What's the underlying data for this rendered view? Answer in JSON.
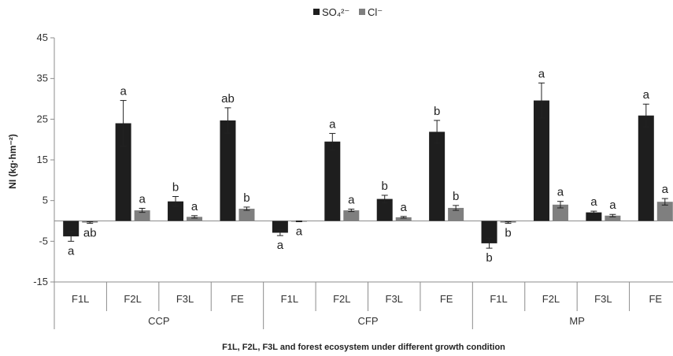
{
  "chart_data": {
    "type": "bar",
    "xlabel": "F1L, F2L, F3L and forest ecosystem under different growth condition",
    "ylabel": "NI (kg·hm⁻²)",
    "ylim": [
      -15,
      45
    ],
    "yticks": [
      -15,
      -5,
      5,
      15,
      25,
      35,
      45
    ],
    "grid": false,
    "legend_position": "top-center",
    "groups": [
      "CCP",
      "CFP",
      "MP"
    ],
    "categories": [
      "F1L",
      "F2L",
      "F3L",
      "FE",
      "F1L",
      "F2L",
      "F3L",
      "FE",
      "F1L",
      "F2L",
      "F3L",
      "FE"
    ],
    "series": [
      {
        "name": "SO₄²⁻",
        "color": "#1e1e1e",
        "values": [
          -3.8,
          24.0,
          4.8,
          24.7,
          -2.9,
          19.5,
          5.4,
          21.9,
          -5.5,
          29.6,
          2.1,
          25.9
        ],
        "errors": [
          1.2,
          5.6,
          1.2,
          3.1,
          0.7,
          2.0,
          0.9,
          2.8,
          1.2,
          4.3,
          0.3,
          2.8
        ],
        "labels": [
          "a",
          "a",
          "b",
          "ab",
          "a",
          "a",
          "b",
          "b",
          "b",
          "a",
          "a",
          "a"
        ]
      },
      {
        "name": "Cl⁻",
        "color": "#7f7f7f",
        "values": [
          -0.4,
          2.6,
          1.0,
          3.0,
          -0.1,
          2.6,
          0.9,
          3.2,
          -0.4,
          4.0,
          1.3,
          4.7
        ],
        "errors": [
          0.2,
          0.5,
          0.3,
          0.4,
          0.1,
          0.3,
          0.2,
          0.6,
          0.2,
          0.8,
          0.3,
          0.8
        ],
        "labels": [
          "ab",
          "a",
          "a",
          "b",
          "a",
          "a",
          "a",
          "b",
          "b",
          "a",
          "a",
          "a"
        ]
      }
    ]
  }
}
